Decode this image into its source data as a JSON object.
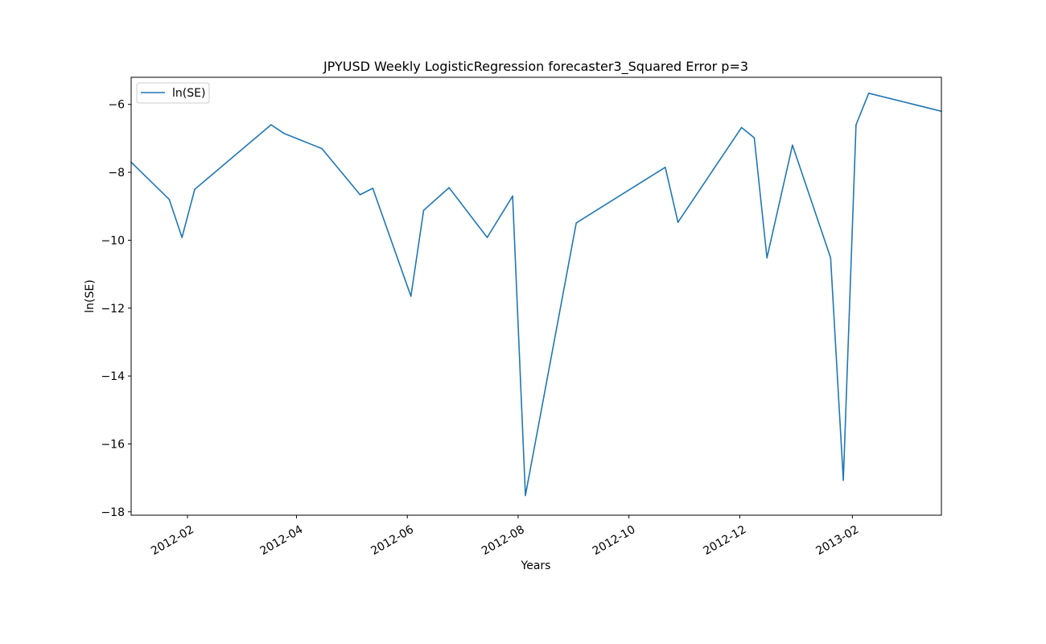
{
  "chart_data": {
    "type": "line",
    "title": "JPYUSD Weekly LogisticRegression forecaster3_Squared Error p=3",
    "xlabel": "Years",
    "ylabel": "ln(SE)",
    "x_type": "date",
    "xlim": [
      "2012-01-01",
      "2013-03-22"
    ],
    "ylim": [
      -18.1,
      -5.2
    ],
    "x_ticks": [
      "2012-02-01",
      "2012-04-01",
      "2012-06-01",
      "2012-08-01",
      "2012-10-01",
      "2012-12-01",
      "2013-02-01"
    ],
    "x_tick_labels": [
      "2012-02",
      "2012-04",
      "2012-06",
      "2012-08",
      "2012-10",
      "2012-12",
      "2013-02"
    ],
    "y_ticks": [
      -18,
      -16,
      -14,
      -12,
      -10,
      -8,
      -6
    ],
    "y_tick_labels": [
      "−18",
      "−16",
      "−14",
      "−12",
      "−10",
      "−8",
      "−6"
    ],
    "grid": false,
    "legend_position": "upper-left",
    "series": [
      {
        "name": "ln(SE)",
        "color": "#1f77b4",
        "x": [
          "2012-01-01",
          "2012-01-22",
          "2012-01-29",
          "2012-02-05",
          "2012-03-18",
          "2012-03-25",
          "2012-04-15",
          "2012-05-06",
          "2012-05-13",
          "2012-06-03",
          "2012-06-10",
          "2012-06-24",
          "2012-07-15",
          "2012-07-29",
          "2012-08-05",
          "2012-09-02",
          "2012-10-21",
          "2012-10-28",
          "2012-12-02",
          "2012-12-09",
          "2012-12-16",
          "2012-12-30",
          "2013-01-20",
          "2013-01-27",
          "2013-02-03",
          "2013-02-10",
          "2013-03-22"
        ],
        "values": [
          -7.7,
          -8.8,
          -9.92,
          -8.5,
          -6.6,
          -6.85,
          -7.3,
          -8.66,
          -8.47,
          -11.65,
          -9.12,
          -8.45,
          -9.92,
          -8.7,
          -17.52,
          -9.49,
          -7.85,
          -9.47,
          -6.68,
          -6.98,
          -10.52,
          -7.2,
          -10.52,
          -17.07,
          -6.6,
          -5.67,
          -6.2
        ]
      }
    ]
  }
}
